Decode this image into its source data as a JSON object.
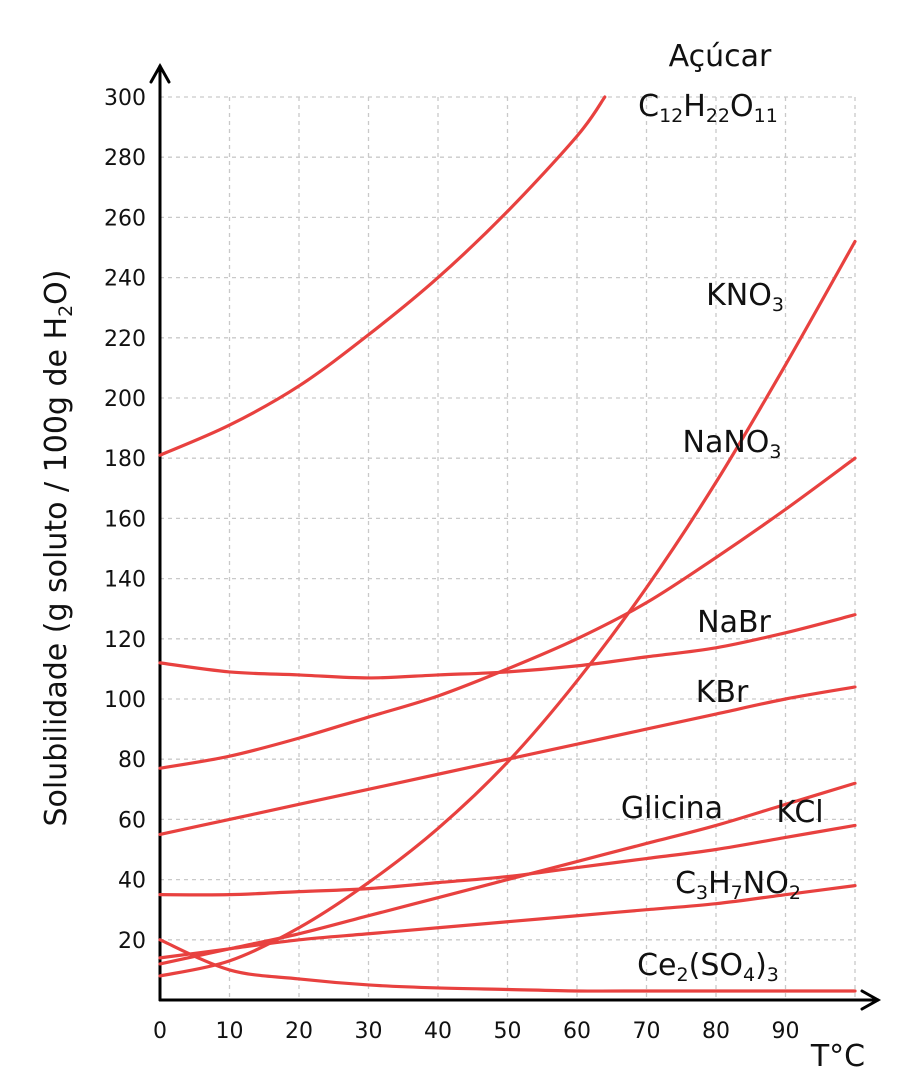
{
  "chart_data": {
    "type": "line",
    "ylabel_parts": [
      "Solubilidade (g soluto / 100g de H",
      "2",
      "O)"
    ],
    "xlabel": "T°C",
    "xlim": [
      0,
      100
    ],
    "ylim": [
      0,
      300
    ],
    "xticks": [
      0,
      10,
      20,
      30,
      40,
      50,
      60,
      70,
      80,
      90
    ],
    "yticks": [
      20,
      40,
      60,
      80,
      100,
      120,
      140,
      160,
      180,
      200,
      220,
      240,
      260,
      280,
      300
    ],
    "grid": true,
    "line_color": "#e8413f",
    "series": [
      {
        "name": "Açúcar C12H22O11",
        "label_parts": [
          "Açúcar"
        ],
        "label2_parts": [
          "C",
          "12",
          "H",
          "22",
          "O",
          "11"
        ],
        "x": [
          0,
          10,
          20,
          30,
          40,
          50,
          60,
          64
        ],
        "y": [
          181,
          191,
          204,
          221,
          240,
          262,
          287,
          300
        ]
      },
      {
        "name": "KNO3",
        "label_parts": [
          "KNO",
          "3"
        ],
        "x": [
          0,
          10,
          20,
          30,
          40,
          50,
          60,
          70,
          80,
          90,
          100
        ],
        "y": [
          8,
          13,
          24,
          39,
          57,
          79,
          106,
          137,
          172,
          211,
          252
        ]
      },
      {
        "name": "NaNO3",
        "label_parts": [
          "NaNO",
          "3"
        ],
        "x": [
          0,
          10,
          20,
          30,
          40,
          50,
          60,
          70,
          80,
          90,
          100
        ],
        "y": [
          77,
          81,
          87,
          94,
          101,
          110,
          120,
          132,
          147,
          163,
          180
        ]
      },
      {
        "name": "NaBr",
        "label_parts": [
          "NaBr"
        ],
        "x": [
          0,
          10,
          20,
          30,
          40,
          50,
          60,
          70,
          80,
          90,
          100
        ],
        "y": [
          112,
          109,
          108,
          107,
          108,
          109,
          111,
          114,
          117,
          122,
          128
        ]
      },
      {
        "name": "KBr",
        "label_parts": [
          "KBr"
        ],
        "x": [
          0,
          10,
          20,
          30,
          40,
          50,
          60,
          70,
          80,
          90,
          100
        ],
        "y": [
          55,
          60,
          65,
          70,
          75,
          80,
          85,
          90,
          95,
          100,
          104
        ]
      },
      {
        "name": "Glicina",
        "label_parts": [
          "Glicina"
        ],
        "x": [
          0,
          10,
          20,
          30,
          40,
          50,
          60,
          70,
          80,
          90,
          100
        ],
        "y": [
          35,
          35,
          36,
          37,
          39,
          41,
          44,
          47,
          50,
          54,
          58
        ]
      },
      {
        "name": "KCl",
        "label_parts": [
          "KCl"
        ],
        "x": [
          0,
          10,
          20,
          30,
          40,
          50,
          60,
          70,
          80,
          90,
          100
        ],
        "y": [
          12,
          17,
          22,
          28,
          34,
          40,
          46,
          52,
          58,
          65,
          72
        ]
      },
      {
        "name": "C3H7NO2",
        "label_parts": [
          "C",
          "3",
          "H",
          "7",
          "NO",
          "2"
        ],
        "x": [
          0,
          10,
          20,
          30,
          40,
          50,
          60,
          70,
          80,
          90,
          100
        ],
        "y": [
          14,
          17,
          20,
          22,
          24,
          26,
          28,
          30,
          32,
          35,
          38
        ]
      },
      {
        "name": "Ce2(SO4)3",
        "label_parts": [
          "Ce",
          "2",
          "(SO",
          "4",
          ")",
          "3"
        ],
        "x": [
          0,
          10,
          20,
          30,
          40,
          50,
          60,
          70,
          80,
          90,
          100
        ],
        "y": [
          20,
          10,
          7,
          5,
          4,
          3.5,
          3,
          3,
          3,
          3,
          3
        ]
      }
    ]
  }
}
